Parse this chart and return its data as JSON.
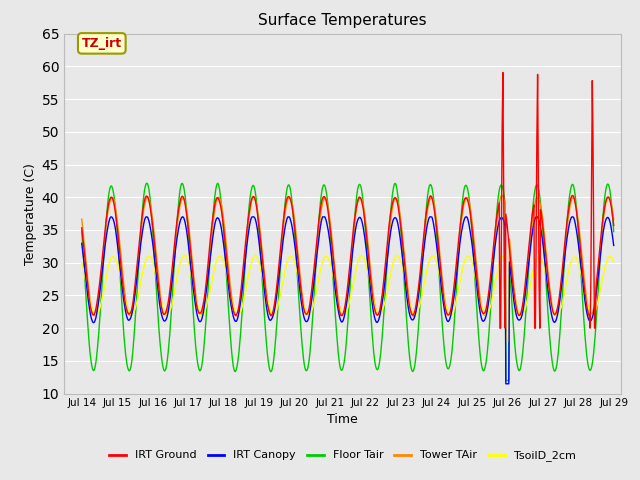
{
  "title": "Surface Temperatures",
  "xlabel": "Time",
  "ylabel": "Temperature (C)",
  "ylim": [
    10,
    65
  ],
  "xlim_start": 13.5,
  "xlim_end": 29.2,
  "annotation_text": "TZ_irt",
  "annotation_bg": "#ffffcc",
  "annotation_fg": "#cc0000",
  "annotation_edge": "#999900",
  "fig_bg": "#e8e8e8",
  "plot_bg": "#e8e8e8",
  "legend_labels": [
    "IRT Ground",
    "IRT Canopy",
    "Floor Tair",
    "Tower TAir",
    "TsoilD_2cm"
  ],
  "legend_colors": [
    "#ff0000",
    "#0000ff",
    "#00cc00",
    "#ff8800",
    "#ffff00"
  ],
  "tick_labels": [
    "Jul 14",
    "Jul 15",
    "Jul 16",
    "Jul 17",
    "Jul 18",
    "Jul 19",
    "Jul 20",
    "Jul 21",
    "Jul 22",
    "Jul 23",
    "Jul 24",
    "Jul 25",
    "Jul 26",
    "Jul 27",
    "Jul 28",
    "Jul 29"
  ],
  "tick_positions": [
    14,
    15,
    16,
    17,
    18,
    19,
    20,
    21,
    22,
    23,
    24,
    25,
    26,
    27,
    28,
    29
  ],
  "grid_color": "#ffffff",
  "yticks": [
    10,
    15,
    20,
    25,
    30,
    35,
    40,
    45,
    50,
    55,
    60,
    65
  ]
}
